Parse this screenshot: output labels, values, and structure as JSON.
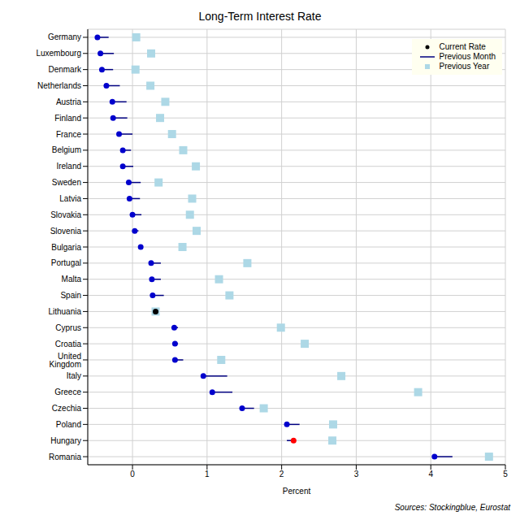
{
  "chart_data": {
    "type": "dot",
    "title": "Long-Term Interest Rate",
    "x_label": "Percent",
    "orientation": "horizontal",
    "annotations": [
      "Sources: Stockingblue, Eurostat"
    ],
    "categories": [
      "Germany",
      "Luxembourg",
      "Denmark",
      "Netherlands",
      "Austria",
      "Finland",
      "France",
      "Belgium",
      "Ireland",
      "Sweden",
      "Latvia",
      "Slovakia",
      "Slovenia",
      "Bulgaria",
      "Portugal",
      "Malta",
      "Spain",
      "Lithuania",
      "Cyprus",
      "Croatia",
      "United Kingdom",
      "Italy",
      "Greece",
      "Czechia",
      "Poland",
      "Hungary",
      "Romania"
    ],
    "xlim": [
      -0.6,
      5
    ],
    "xticks": [
      0,
      1,
      2,
      3,
      4,
      5
    ],
    "grid": true,
    "legend": "upper right",
    "series": [
      {
        "name": "Current Rate",
        "type": "scatter",
        "marker": "circle",
        "color": "#0000cd",
        "colors": [
          "#0000cd",
          "#0000cd",
          "#0000cd",
          "#0000cd",
          "#0000cd",
          "#0000cd",
          "#0000cd",
          "#0000cd",
          "#0000cd",
          "#0000cd",
          "#0000cd",
          "#0000cd",
          "#0000cd",
          "#0000cd",
          "#0000cd",
          "#0000cd",
          "#0000cd",
          "#000000",
          "#0000cd",
          "#0000cd",
          "#0000cd",
          "#0000cd",
          "#0000cd",
          "#0000cd",
          "#0000cd",
          "#ff0000",
          "#0000cd"
        ],
        "values": [
          -0.47,
          -0.43,
          -0.41,
          -0.35,
          -0.27,
          -0.26,
          -0.18,
          -0.13,
          -0.13,
          -0.05,
          -0.04,
          0.0,
          0.03,
          0.11,
          0.25,
          0.26,
          0.27,
          0.31,
          0.56,
          0.57,
          0.57,
          0.95,
          1.07,
          1.47,
          2.07,
          2.16,
          4.05
        ]
      },
      {
        "name": "Previous Month",
        "type": "line",
        "line_style": "solid",
        "color": "#000080",
        "values": [
          -0.32,
          -0.25,
          -0.26,
          -0.17,
          -0.08,
          -0.07,
          0.0,
          -0.02,
          0.01,
          0.11,
          0.1,
          0.12,
          0.08,
          0.12,
          0.38,
          0.38,
          0.42,
          0.31,
          0.61,
          0.61,
          0.68,
          1.27,
          1.34,
          1.63,
          2.24,
          2.07,
          4.29
        ]
      },
      {
        "name": "Previous Year",
        "type": "scatter",
        "marker": "square",
        "color": "#add8e6",
        "values": [
          0.05,
          0.25,
          0.04,
          0.24,
          0.44,
          0.37,
          0.53,
          0.68,
          0.85,
          0.35,
          0.8,
          0.77,
          0.86,
          0.67,
          1.54,
          1.16,
          1.3,
          0.31,
          1.99,
          2.31,
          1.19,
          2.8,
          3.83,
          1.76,
          2.69,
          2.68,
          4.78
        ]
      }
    ]
  }
}
